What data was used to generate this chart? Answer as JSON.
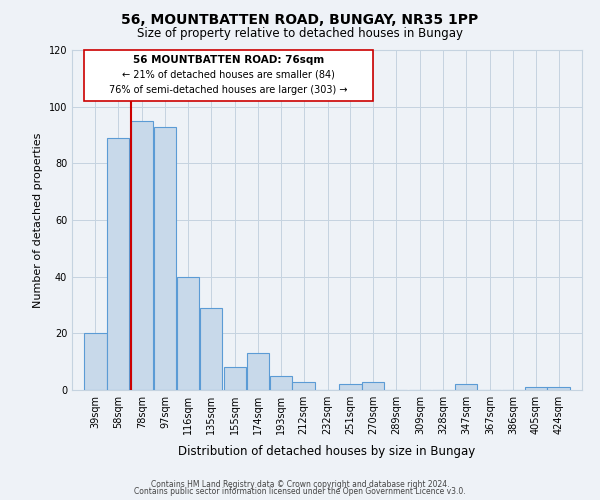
{
  "title": "56, MOUNTBATTEN ROAD, BUNGAY, NR35 1PP",
  "subtitle": "Size of property relative to detached houses in Bungay",
  "xlabel": "Distribution of detached houses by size in Bungay",
  "ylabel": "Number of detached properties",
  "bin_labels": [
    "39sqm",
    "58sqm",
    "78sqm",
    "97sqm",
    "116sqm",
    "135sqm",
    "155sqm",
    "174sqm",
    "193sqm",
    "212sqm",
    "232sqm",
    "251sqm",
    "270sqm",
    "289sqm",
    "309sqm",
    "328sqm",
    "347sqm",
    "367sqm",
    "386sqm",
    "405sqm",
    "424sqm"
  ],
  "bar_values": [
    20,
    89,
    95,
    93,
    40,
    29,
    8,
    13,
    5,
    3,
    0,
    2,
    3,
    0,
    0,
    0,
    2,
    0,
    0,
    1,
    1
  ],
  "bar_color": "#c8d9ea",
  "bar_edge_color": "#5b9bd5",
  "subject_line_color": "#cc0000",
  "ylim": [
    0,
    120
  ],
  "yticks": [
    0,
    20,
    40,
    60,
    80,
    100,
    120
  ],
  "annotation_title": "56 MOUNTBATTEN ROAD: 76sqm",
  "annotation_line1": "← 21% of detached houses are smaller (84)",
  "annotation_line2": "76% of semi-detached houses are larger (303) →",
  "footer_line1": "Contains HM Land Registry data © Crown copyright and database right 2024.",
  "footer_line2": "Contains public sector information licensed under the Open Government Licence v3.0.",
  "bg_color": "#eef2f7",
  "grid_color": "#c5d3e0"
}
